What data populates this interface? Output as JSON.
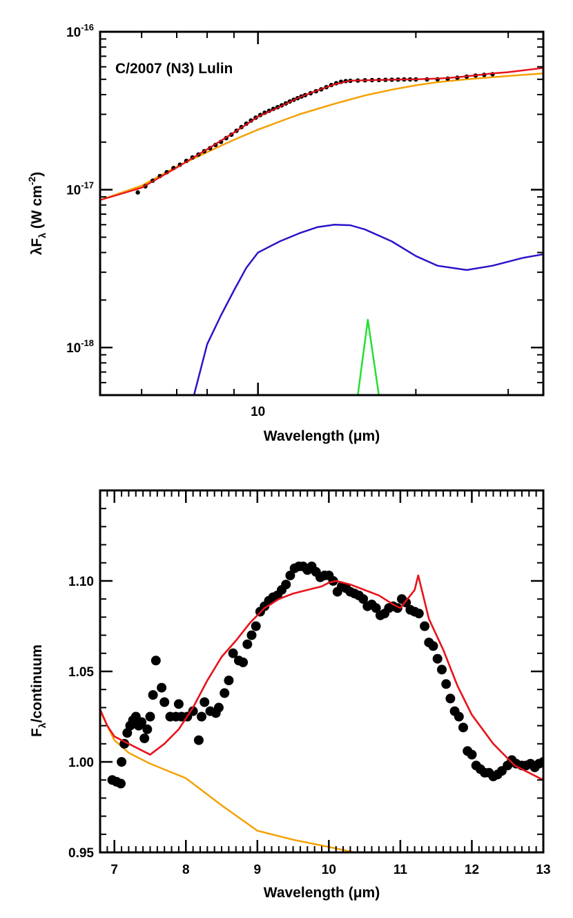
{
  "chart_data": [
    {
      "type": "line",
      "xscale": "log",
      "yscale": "log",
      "xlim": [
        5.0,
        35.0
      ],
      "ylim": [
        5e-19,
        1e-16
      ],
      "xlabel_parts": [
        "Wavelength (",
        "μ",
        "m)"
      ],
      "ylabel_parts": [
        "λ",
        "F",
        "λ",
        " (W cm",
        "-2",
        ")"
      ],
      "xticks": [
        {
          "value": 10,
          "label": "10"
        }
      ],
      "yticks": [
        {
          "value": 1e-16,
          "base": "10",
          "exp": "-16"
        },
        {
          "value": 1e-17,
          "base": "10",
          "exp": "-17"
        },
        {
          "value": 1e-18,
          "base": "10",
          "exp": "-18"
        }
      ],
      "annotation": "C/2007 (N3) Lulin",
      "colors": {
        "data": "#000000",
        "total": "#e8141c",
        "continuum": "#f5a000",
        "silicate": "#2a14c8",
        "feature": "#22e030"
      },
      "points": [
        [
          5.9,
          9.6e-18
        ],
        [
          6.1,
          1.05e-17
        ],
        [
          6.3,
          1.14e-17
        ],
        [
          6.5,
          1.22e-17
        ],
        [
          6.7,
          1.29e-17
        ],
        [
          6.9,
          1.37e-17
        ],
        [
          7.1,
          1.44e-17
        ],
        [
          7.3,
          1.52e-17
        ],
        [
          7.5,
          1.6e-17
        ],
        [
          7.7,
          1.67e-17
        ],
        [
          7.9,
          1.75e-17
        ],
        [
          8.1,
          1.83e-17
        ],
        [
          8.3,
          1.92e-17
        ],
        [
          8.5,
          2.01e-17
        ],
        [
          8.7,
          2.12e-17
        ],
        [
          8.9,
          2.23e-17
        ],
        [
          9.1,
          2.36e-17
        ],
        [
          9.3,
          2.49e-17
        ],
        [
          9.5,
          2.62e-17
        ],
        [
          9.7,
          2.74e-17
        ],
        [
          9.9,
          2.86e-17
        ],
        [
          10.1,
          2.97e-17
        ],
        [
          10.3,
          3.07e-17
        ],
        [
          10.5,
          3.16e-17
        ],
        [
          10.7,
          3.25e-17
        ],
        [
          10.9,
          3.33e-17
        ],
        [
          11.1,
          3.42e-17
        ],
        [
          11.3,
          3.52e-17
        ],
        [
          11.5,
          3.62e-17
        ],
        [
          11.7,
          3.71e-17
        ],
        [
          11.9,
          3.8e-17
        ],
        [
          12.1,
          3.89e-17
        ],
        [
          12.3,
          3.97e-17
        ],
        [
          12.6,
          4.08e-17
        ],
        [
          12.9,
          4.2e-17
        ],
        [
          13.2,
          4.32e-17
        ],
        [
          13.5,
          4.46e-17
        ],
        [
          13.8,
          4.6e-17
        ],
        [
          14.1,
          4.72e-17
        ],
        [
          14.4,
          4.82e-17
        ],
        [
          14.7,
          4.87e-17
        ],
        [
          15.0,
          4.89e-17
        ],
        [
          15.5,
          4.91e-17
        ],
        [
          16.0,
          4.93e-17
        ],
        [
          16.5,
          4.94e-17
        ],
        [
          17.0,
          4.95e-17
        ],
        [
          17.5,
          4.96e-17
        ],
        [
          18.0,
          4.97e-17
        ],
        [
          18.5,
          4.98e-17
        ],
        [
          19.0,
          4.99e-17
        ],
        [
          19.5,
          4.99e-17
        ],
        [
          20.0,
          4.99e-17
        ],
        [
          21.0,
          4.99e-17
        ],
        [
          22.0,
          5e-17
        ],
        [
          23.0,
          5.05e-17
        ],
        [
          24.0,
          5.12e-17
        ],
        [
          25.0,
          5.2e-17
        ],
        [
          26.0,
          5.28e-17
        ],
        [
          27.0,
          5.34e-17
        ],
        [
          28.0,
          5.38e-17
        ]
      ],
      "series": [
        {
          "key": "total",
          "values": [
            [
              5.0,
              8.6e-18
            ],
            [
              6.0,
              1.03e-17
            ],
            [
              7.0,
              1.38e-17
            ],
            [
              8.0,
              1.8e-17
            ],
            [
              9.0,
              2.3e-17
            ],
            [
              10.0,
              2.9e-17
            ],
            [
              11.0,
              3.35e-17
            ],
            [
              12.0,
              3.85e-17
            ],
            [
              13.0,
              4.25e-17
            ],
            [
              14.0,
              4.65e-17
            ],
            [
              15.0,
              4.9e-17
            ],
            [
              16.0,
              4.93e-17
            ],
            [
              18.0,
              4.97e-17
            ],
            [
              20.0,
              5e-17
            ],
            [
              22.0,
              5.05e-17
            ],
            [
              24.0,
              5.15e-17
            ],
            [
              26.0,
              5.3e-17
            ],
            [
              28.0,
              5.45e-17
            ],
            [
              30.0,
              5.55e-17
            ],
            [
              35.0,
              5.9e-17
            ]
          ]
        },
        {
          "key": "continuum",
          "values": [
            [
              5.0,
              8.6e-18
            ],
            [
              6.0,
              1.06e-17
            ],
            [
              7.0,
              1.4e-17
            ],
            [
              8.0,
              1.73e-17
            ],
            [
              9.0,
              2.07e-17
            ],
            [
              10.0,
              2.4e-17
            ],
            [
              11.0,
              2.7e-17
            ],
            [
              12.0,
              3e-17
            ],
            [
              14.0,
              3.5e-17
            ],
            [
              16.0,
              3.95e-17
            ],
            [
              18.0,
              4.3e-17
            ],
            [
              20.0,
              4.58e-17
            ],
            [
              22.0,
              4.8e-17
            ],
            [
              25.0,
              5e-17
            ],
            [
              30.0,
              5.25e-17
            ],
            [
              35.0,
              5.45e-17
            ]
          ]
        },
        {
          "key": "silicate",
          "values": [
            [
              7.55,
              5e-19
            ],
            [
              8.0,
              1.05e-18
            ],
            [
              8.5,
              1.6e-18
            ],
            [
              9.0,
              2.3e-18
            ],
            [
              9.5,
              3.2e-18
            ],
            [
              10.0,
              4e-18
            ],
            [
              11.0,
              4.7e-18
            ],
            [
              12.0,
              5.3e-18
            ],
            [
              13.0,
              5.8e-18
            ],
            [
              14.0,
              6e-18
            ],
            [
              15.0,
              5.95e-18
            ],
            [
              16.0,
              5.6e-18
            ],
            [
              18.0,
              4.7e-18
            ],
            [
              20.0,
              3.8e-18
            ],
            [
              22.0,
              3.3e-18
            ],
            [
              25.0,
              3.1e-18
            ],
            [
              28.0,
              3.3e-18
            ],
            [
              32.0,
              3.7e-18
            ],
            [
              35.0,
              3.9e-18
            ]
          ]
        },
        {
          "key": "feature",
          "values": [
            [
              15.5,
              5e-19
            ],
            [
              16.2,
              1.5e-18
            ],
            [
              17.0,
              5e-19
            ]
          ]
        }
      ]
    },
    {
      "type": "scatter",
      "xlim": [
        6.8,
        13.0
      ],
      "ylim": [
        0.95,
        1.15
      ],
      "xlabel_parts": [
        "Wavelength (",
        "μ",
        "m)"
      ],
      "ylabel_parts": [
        "F",
        "λ",
        "/continuum"
      ],
      "xticks": [
        {
          "value": 7,
          "label": "7"
        },
        {
          "value": 8,
          "label": "8"
        },
        {
          "value": 9,
          "label": "9"
        },
        {
          "value": 10,
          "label": "10"
        },
        {
          "value": 11,
          "label": "11"
        },
        {
          "value": 12,
          "label": "12"
        },
        {
          "value": 13,
          "label": "13"
        }
      ],
      "yticks": [
        {
          "value": 0.95,
          "label": "0.95"
        },
        {
          "value": 1.0,
          "label": "1.00"
        },
        {
          "value": 1.05,
          "label": "1.05"
        },
        {
          "value": 1.1,
          "label": "1.10"
        }
      ],
      "colors": {
        "data": "#000000",
        "total": "#e8141c",
        "continuum": "#f5a000"
      },
      "points": [
        [
          6.97,
          0.99
        ],
        [
          7.03,
          0.989
        ],
        [
          7.09,
          0.988
        ],
        [
          7.1,
          1.0
        ],
        [
          7.14,
          1.01
        ],
        [
          7.18,
          1.016
        ],
        [
          7.22,
          1.02
        ],
        [
          7.26,
          1.023
        ],
        [
          7.3,
          1.025
        ],
        [
          7.34,
          1.02
        ],
        [
          7.38,
          1.022
        ],
        [
          7.42,
          1.013
        ],
        [
          7.46,
          1.018
        ],
        [
          7.5,
          1.025
        ],
        [
          7.54,
          1.037
        ],
        [
          7.58,
          1.056
        ],
        [
          7.66,
          1.041
        ],
        [
          7.7,
          1.033
        ],
        [
          7.78,
          1.025
        ],
        [
          7.86,
          1.025
        ],
        [
          7.9,
          1.032
        ],
        [
          7.94,
          1.025
        ],
        [
          8.02,
          1.025
        ],
        [
          8.1,
          1.028
        ],
        [
          8.18,
          1.012
        ],
        [
          8.22,
          1.025
        ],
        [
          8.26,
          1.033
        ],
        [
          8.34,
          1.028
        ],
        [
          8.42,
          1.027
        ],
        [
          8.46,
          1.03
        ],
        [
          8.54,
          1.038
        ],
        [
          8.6,
          1.045
        ],
        [
          8.66,
          1.06
        ],
        [
          8.74,
          1.056
        ],
        [
          8.8,
          1.055
        ],
        [
          8.86,
          1.065
        ],
        [
          8.92,
          1.07
        ],
        [
          8.98,
          1.075
        ],
        [
          9.04,
          1.083
        ],
        [
          9.1,
          1.086
        ],
        [
          9.16,
          1.089
        ],
        [
          9.22,
          1.091
        ],
        [
          9.28,
          1.092
        ],
        [
          9.34,
          1.095
        ],
        [
          9.4,
          1.098
        ],
        [
          9.46,
          1.103
        ],
        [
          9.52,
          1.107
        ],
        [
          9.58,
          1.108
        ],
        [
          9.64,
          1.108
        ],
        [
          9.7,
          1.106
        ],
        [
          9.76,
          1.108
        ],
        [
          9.82,
          1.105
        ],
        [
          9.88,
          1.102
        ],
        [
          9.94,
          1.103
        ],
        [
          10.0,
          1.103
        ],
        [
          10.06,
          1.1
        ],
        [
          10.12,
          1.094
        ],
        [
          10.18,
          1.097
        ],
        [
          10.24,
          1.096
        ],
        [
          10.3,
          1.094
        ],
        [
          10.36,
          1.093
        ],
        [
          10.42,
          1.092
        ],
        [
          10.48,
          1.09
        ],
        [
          10.54,
          1.086
        ],
        [
          10.6,
          1.087
        ],
        [
          10.66,
          1.085
        ],
        [
          10.72,
          1.081
        ],
        [
          10.78,
          1.082
        ],
        [
          10.84,
          1.085
        ],
        [
          10.9,
          1.086
        ],
        [
          10.96,
          1.085
        ],
        [
          11.02,
          1.09
        ],
        [
          11.08,
          1.088
        ],
        [
          11.14,
          1.084
        ],
        [
          11.2,
          1.083
        ],
        [
          11.26,
          1.082
        ],
        [
          11.34,
          1.075
        ],
        [
          11.4,
          1.066
        ],
        [
          11.46,
          1.064
        ],
        [
          11.52,
          1.057
        ],
        [
          11.58,
          1.051
        ],
        [
          11.64,
          1.043
        ],
        [
          11.7,
          1.035
        ],
        [
          11.76,
          1.028
        ],
        [
          11.82,
          1.025
        ],
        [
          11.88,
          1.019
        ],
        [
          11.94,
          1.006
        ],
        [
          12.0,
          1.004
        ],
        [
          12.06,
          0.998
        ],
        [
          12.12,
          0.996
        ],
        [
          12.18,
          0.994
        ],
        [
          12.24,
          0.994
        ],
        [
          12.3,
          0.992
        ],
        [
          12.36,
          0.993
        ],
        [
          12.42,
          0.995
        ],
        [
          12.5,
          0.998
        ],
        [
          12.56,
          1.001
        ],
        [
          12.62,
          0.999
        ],
        [
          12.7,
          0.998
        ],
        [
          12.76,
          0.998
        ],
        [
          12.82,
          0.999
        ],
        [
          12.88,
          0.997
        ],
        [
          12.94,
          0.999
        ],
        [
          13.0,
          1.0
        ]
      ],
      "series": [
        {
          "key": "total",
          "values": [
            [
              6.8,
              1.029
            ],
            [
              6.9,
              1.02
            ],
            [
              7.0,
              1.014
            ],
            [
              7.2,
              1.01
            ],
            [
              7.5,
              1.004
            ],
            [
              7.7,
              1.01
            ],
            [
              7.9,
              1.018
            ],
            [
              8.1,
              1.03
            ],
            [
              8.3,
              1.045
            ],
            [
              8.5,
              1.058
            ],
            [
              8.7,
              1.067
            ],
            [
              8.9,
              1.077
            ],
            [
              9.1,
              1.085
            ],
            [
              9.3,
              1.09
            ],
            [
              9.5,
              1.093
            ],
            [
              9.7,
              1.095
            ],
            [
              9.9,
              1.097
            ],
            [
              10.0,
              1.099
            ],
            [
              10.1,
              1.1
            ],
            [
              10.3,
              1.098
            ],
            [
              10.5,
              1.095
            ],
            [
              10.7,
              1.092
            ],
            [
              10.9,
              1.087
            ],
            [
              11.0,
              1.085
            ],
            [
              11.1,
              1.09
            ],
            [
              11.2,
              1.095
            ],
            [
              11.25,
              1.103
            ],
            [
              11.4,
              1.079
            ],
            [
              11.6,
              1.062
            ],
            [
              11.8,
              1.042
            ],
            [
              12.0,
              1.026
            ],
            [
              12.3,
              1.01
            ],
            [
              12.6,
              0.998
            ],
            [
              12.9,
              0.992
            ],
            [
              13.0,
              0.99
            ]
          ]
        },
        {
          "key": "continuum",
          "values": [
            [
              6.8,
              1.028
            ],
            [
              7.0,
              1.012
            ],
            [
              7.2,
              1.005
            ],
            [
              7.5,
              0.999
            ],
            [
              8.0,
              0.991
            ],
            [
              8.5,
              0.976
            ],
            [
              9.0,
              0.962
            ],
            [
              9.5,
              0.957
            ],
            [
              10.0,
              0.953
            ],
            [
              10.6,
              0.948
            ]
          ]
        }
      ]
    }
  ]
}
